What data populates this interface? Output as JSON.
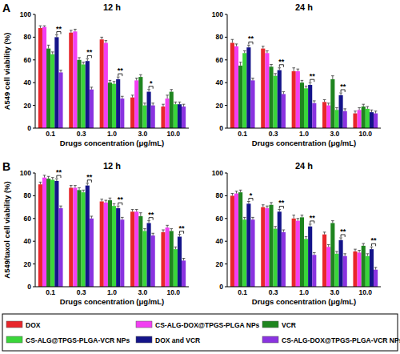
{
  "panel_labels": [
    "A",
    "B"
  ],
  "chart_data": [
    {
      "type": "bar",
      "title": "12 h",
      "x_label": "Drugs concentration (μg/mL)",
      "y_label": "A549 cell viability (%)",
      "legend": "bottom",
      "categories": [
        "0.1",
        "0.3",
        "1.0",
        "3.0",
        "10.0"
      ],
      "ylim": [
        0,
        100
      ],
      "yticks": [
        0,
        20,
        40,
        60,
        80,
        100
      ],
      "series": [
        {
          "name": "DOX",
          "color": "#e8262b",
          "values": [
            88,
            84,
            78,
            27,
            19
          ],
          "errors": [
            2,
            2,
            2,
            2,
            2
          ]
        },
        {
          "name": "CS-ALG-DOX@TPGS-PLGA NPs",
          "color": "#f23ff2",
          "values": [
            89,
            85,
            75,
            42,
            26
          ],
          "errors": [
            1,
            2,
            2,
            2,
            3
          ]
        },
        {
          "name": "VCR",
          "color": "#1f851f",
          "values": [
            70,
            60,
            40,
            45,
            32
          ],
          "errors": [
            3,
            2,
            2,
            2,
            2
          ]
        },
        {
          "name": "CS-ALG@TPGS-PLGA-VCR NPs",
          "color": "#3ad63a",
          "values": [
            65,
            56,
            39,
            20,
            21
          ],
          "errors": [
            2,
            2,
            2,
            2,
            2
          ]
        },
        {
          "name": "DOX and VCR",
          "color": "#141489",
          "values": [
            80,
            59,
            43,
            32,
            21
          ],
          "errors": [
            2,
            2,
            2,
            2,
            2
          ]
        },
        {
          "name": "CS-ALG-DOX@TPGS-PLGA-VCR NPs",
          "color": "#8a33e0",
          "values": [
            49,
            34,
            26,
            20,
            19
          ],
          "errors": [
            2,
            2,
            2,
            2,
            2
          ]
        }
      ],
      "annotations": [
        {
          "text": "**",
          "category": 0,
          "series": [
            4,
            5
          ]
        },
        {
          "text": "**",
          "category": 1,
          "series": [
            4,
            5
          ]
        },
        {
          "text": "**",
          "category": 2,
          "series": [
            4,
            5
          ]
        },
        {
          "text": "*",
          "category": 3,
          "series": [
            4,
            5
          ]
        }
      ]
    },
    {
      "type": "bar",
      "title": "24 h",
      "x_label": "Drugs concentration (μg/mL)",
      "categories": [
        "0.1",
        "0.3",
        "1.0",
        "3.0",
        "10.0"
      ],
      "ylim": [
        0,
        100
      ],
      "yticks": [
        0,
        20,
        40,
        60,
        80,
        100
      ],
      "series": [
        {
          "name": "DOX",
          "color": "#e8262b",
          "values": [
            75,
            70,
            50,
            23,
            13
          ],
          "errors": [
            3,
            2,
            3,
            2,
            2
          ]
        },
        {
          "name": "CS-ALG-DOX@TPGS-PLGA NPs",
          "color": "#f23ff2",
          "values": [
            72,
            66,
            50,
            20,
            16
          ],
          "errors": [
            2,
            2,
            2,
            2,
            2
          ]
        },
        {
          "name": "VCR",
          "color": "#1f851f",
          "values": [
            55,
            54,
            40,
            43,
            19
          ],
          "errors": [
            3,
            2,
            2,
            3,
            2
          ]
        },
        {
          "name": "CS-ALG@TPGS-PLGA-VCR NPs",
          "color": "#3ad63a",
          "values": [
            66,
            46,
            35,
            16,
            17
          ],
          "errors": [
            2,
            2,
            2,
            2,
            2
          ]
        },
        {
          "name": "DOX and VCR",
          "color": "#141489",
          "values": [
            71,
            51,
            38,
            29,
            14
          ],
          "errors": [
            2,
            2,
            2,
            2,
            2
          ]
        },
        {
          "name": "CS-ALG-DOX@TPGS-PLGA-VCR NPs",
          "color": "#8a33e0",
          "values": [
            42,
            30,
            22,
            15,
            13
          ],
          "errors": [
            2,
            2,
            2,
            2,
            2
          ]
        }
      ],
      "annotations": [
        {
          "text": "**",
          "category": 0,
          "series": [
            4,
            5
          ]
        },
        {
          "text": "**",
          "category": 1,
          "series": [
            4,
            5
          ]
        },
        {
          "text": "**",
          "category": 2,
          "series": [
            4,
            5
          ]
        },
        {
          "text": "**",
          "category": 3,
          "series": [
            4,
            5
          ]
        }
      ]
    },
    {
      "type": "bar",
      "title": "12 h",
      "x_label": "Drugs concentration (μg/mL)",
      "y_label": "A549/taxol cell viability (%)",
      "categories": [
        "0.1",
        "0.3",
        "1.0",
        "3.0",
        "10.0"
      ],
      "ylim": [
        0,
        100
      ],
      "yticks": [
        0,
        20,
        40,
        60,
        80,
        100
      ],
      "series": [
        {
          "name": "DOX",
          "color": "#e8262b",
          "values": [
            90,
            87,
            75,
            66,
            48
          ],
          "errors": [
            2,
            2,
            2,
            2,
            2
          ]
        },
        {
          "name": "CS-ALG-DOX@TPGS-PLGA NPs",
          "color": "#f23ff2",
          "values": [
            96,
            87,
            74,
            66,
            52
          ],
          "errors": [
            2,
            2,
            2,
            2,
            2
          ]
        },
        {
          "name": "VCR",
          "color": "#1f851f",
          "values": [
            95,
            85,
            76,
            62,
            49
          ],
          "errors": [
            2,
            2,
            2,
            3,
            2
          ]
        },
        {
          "name": "CS-ALG@TPGS-PLGA-VCR NPs",
          "color": "#3ad63a",
          "values": [
            94,
            83,
            71,
            49,
            33
          ],
          "errors": [
            2,
            2,
            2,
            2,
            2
          ]
        },
        {
          "name": "DOX and VCR",
          "color": "#141489",
          "values": [
            93,
            89,
            69,
            56,
            44
          ],
          "errors": [
            2,
            2,
            2,
            2,
            2
          ]
        },
        {
          "name": "CS-ALG-DOX@TPGS-PLGA-VCR NPs",
          "color": "#8a33e0",
          "values": [
            69,
            60,
            59,
            45,
            23
          ],
          "errors": [
            2,
            2,
            2,
            2,
            2
          ]
        }
      ],
      "annotations": [
        {
          "text": "**",
          "category": 0,
          "series": [
            4,
            5
          ]
        },
        {
          "text": "**",
          "category": 1,
          "series": [
            4,
            5
          ]
        },
        {
          "text": "**",
          "category": 2,
          "series": [
            4,
            5
          ]
        },
        {
          "text": "**",
          "category": 3,
          "series": [
            4,
            5
          ]
        },
        {
          "text": "**",
          "category": 4,
          "series": [
            4,
            5
          ]
        }
      ]
    },
    {
      "type": "bar",
      "title": "24 h",
      "x_label": "Drugs concentration (μg/mL)",
      "categories": [
        "0.1",
        "0.3",
        "1.0",
        "3.0",
        "10.0"
      ],
      "ylim": [
        0,
        100
      ],
      "yticks": [
        0,
        20,
        40,
        60,
        80,
        100
      ],
      "series": [
        {
          "name": "DOX",
          "color": "#e8262b",
          "values": [
            80,
            70,
            60,
            46,
            31
          ],
          "errors": [
            2,
            2,
            3,
            2,
            2
          ]
        },
        {
          "name": "CS-ALG-DOX@TPGS-PLGA NPs",
          "color": "#f23ff2",
          "values": [
            82,
            69,
            58,
            35,
            30
          ],
          "errors": [
            2,
            2,
            2,
            2,
            2
          ]
        },
        {
          "name": "VCR",
          "color": "#1f851f",
          "values": [
            83,
            72,
            61,
            56,
            36
          ],
          "errors": [
            2,
            2,
            2,
            2,
            2
          ]
        },
        {
          "name": "CS-ALG@TPGS-PLGA-VCR NPs",
          "color": "#3ad63a",
          "values": [
            59,
            51,
            42,
            29,
            27
          ],
          "errors": [
            2,
            2,
            2,
            2,
            2
          ]
        },
        {
          "name": "DOX and VCR",
          "color": "#141489",
          "values": [
            73,
            66,
            53,
            41,
            33
          ],
          "errors": [
            2,
            2,
            2,
            2,
            2
          ]
        },
        {
          "name": "CS-ALG-DOX@TPGS-PLGA-VCR NPs",
          "color": "#8a33e0",
          "values": [
            59,
            48,
            28,
            27,
            15
          ],
          "errors": [
            2,
            2,
            2,
            2,
            2
          ]
        }
      ],
      "annotations": [
        {
          "text": "*",
          "category": 0,
          "series": [
            4,
            5
          ]
        },
        {
          "text": "**",
          "category": 1,
          "series": [
            4,
            5
          ]
        },
        {
          "text": "**",
          "category": 2,
          "series": [
            4,
            5
          ]
        },
        {
          "text": "**",
          "category": 3,
          "series": [
            4,
            5
          ]
        },
        {
          "text": "**",
          "category": 4,
          "series": [
            4,
            5
          ]
        }
      ]
    }
  ]
}
